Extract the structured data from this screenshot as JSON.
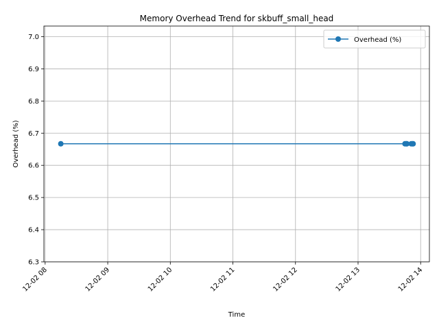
{
  "chart_data": {
    "type": "line",
    "title": "Memory Overhead Trend for skbuff_small_head",
    "xlabel": "Time",
    "ylabel": "Overhead (%)",
    "x_tick_labels": [
      "12-02 08",
      "12-02 09",
      "12-02 10",
      "12-02 11",
      "12-02 12",
      "12-02 13",
      "12-02 14"
    ],
    "x_tick_hours": [
      8,
      9,
      10,
      11,
      12,
      13,
      14
    ],
    "xlim_hours": [
      7.98,
      14.14
    ],
    "y_tick_labels": [
      "6.3",
      "6.4",
      "6.5",
      "6.6",
      "6.7",
      "6.8",
      "6.9",
      "7.0"
    ],
    "y_ticks": [
      6.3,
      6.4,
      6.5,
      6.6,
      6.7,
      6.8,
      6.9,
      7.0
    ],
    "ylim": [
      6.3,
      7.033
    ],
    "grid": true,
    "legend_position": "top-right",
    "series": [
      {
        "name": "Overhead (%)",
        "color": "#1f77b4",
        "marker": "circle",
        "x_times": [
          "12-02 08:15",
          "12-02 13:45",
          "12-02 13:46",
          "12-02 13:47",
          "12-02 13:51",
          "12-02 13:52",
          "12-02 13:53"
        ],
        "x_hours": [
          8.25,
          13.75,
          13.77,
          13.78,
          13.85,
          13.87,
          13.88
        ],
        "values": [
          6.667,
          6.667,
          6.667,
          6.667,
          6.667,
          6.667,
          6.667
        ]
      }
    ]
  }
}
